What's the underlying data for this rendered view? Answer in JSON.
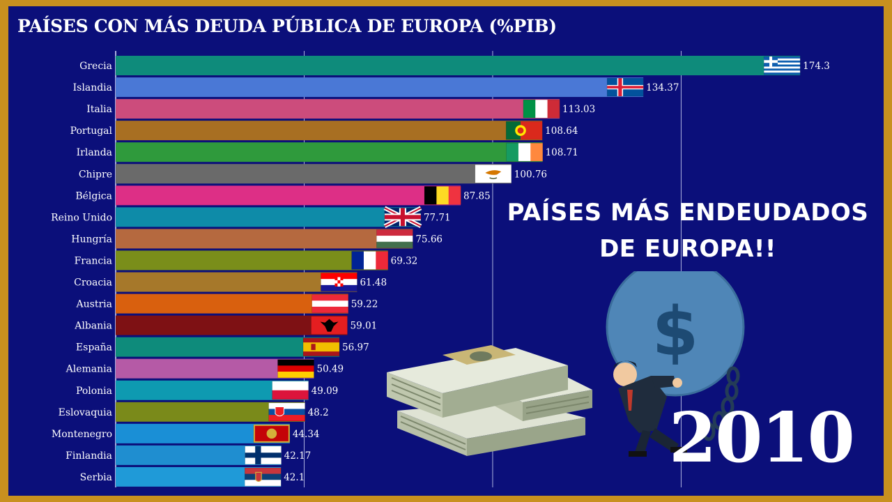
{
  "title": "PAÍSES CON MÁS DEUDA PÚBLICA DE EUROPA (%PIB)",
  "headline": [
    "PAÍSES MÁS ENDEUDADOS",
    "DE EUROPA!!"
  ],
  "year": "2010",
  "money_symbol": "$",
  "chart_data": {
    "type": "bar",
    "orientation": "horizontal",
    "title": "PAÍSES CON MÁS DEUDA PÚBLICA DE EUROPA (%PIB)",
    "xlim": [
      0,
      180
    ],
    "grid": "vertical",
    "categories": [
      "Grecia",
      "Islandia",
      "Italia",
      "Portugal",
      "Irlanda",
      "Chipre",
      "Bélgica",
      "Reino Unido",
      "Hungría",
      "Francia",
      "Croacia",
      "Austria",
      "Albania",
      "España",
      "Alemania",
      "Polonia",
      "Eslovaquia",
      "Montenegro",
      "Finlandia",
      "Serbia"
    ],
    "values": [
      174.3,
      134.37,
      113.03,
      108.64,
      108.71,
      100.76,
      87.85,
      77.71,
      75.66,
      69.32,
      61.48,
      59.22,
      59.01,
      56.97,
      50.49,
      49.09,
      48.2,
      44.34,
      42.17,
      42.1
    ],
    "value_labels": [
      "174.3",
      "134.37",
      "113.03",
      "108.64",
      "108.71",
      "100.76",
      "87.85",
      "77.71",
      "75.66",
      "69.32",
      "61.48",
      "59.22",
      "59.01",
      "56.97",
      "50.49",
      "49.09",
      "48.2",
      "44.34",
      "42.17",
      "42.1"
    ],
    "colors": [
      "#0e8b7b",
      "#4a78d6",
      "#cc4c7c",
      "#a86f22",
      "#2f9a3c",
      "#6a6a6a",
      "#dd2f86",
      "#0e8ba8",
      "#b5693f",
      "#7a8e1a",
      "#a6782a",
      "#d9600e",
      "#7e1114",
      "#0e8b7b",
      "#b55aa6",
      "#0e9ab1",
      "#7a8a1a",
      "#1a8fd6",
      "#1f8ed0",
      "#1f9ad8"
    ],
    "flags": [
      "greece",
      "iceland",
      "italy",
      "portugal",
      "ireland",
      "cyprus",
      "belgium",
      "united-kingdom",
      "hungary",
      "france",
      "croatia",
      "austria",
      "albania",
      "spain",
      "germany",
      "poland",
      "slovakia",
      "montenegro",
      "finland",
      "serbia"
    ]
  }
}
